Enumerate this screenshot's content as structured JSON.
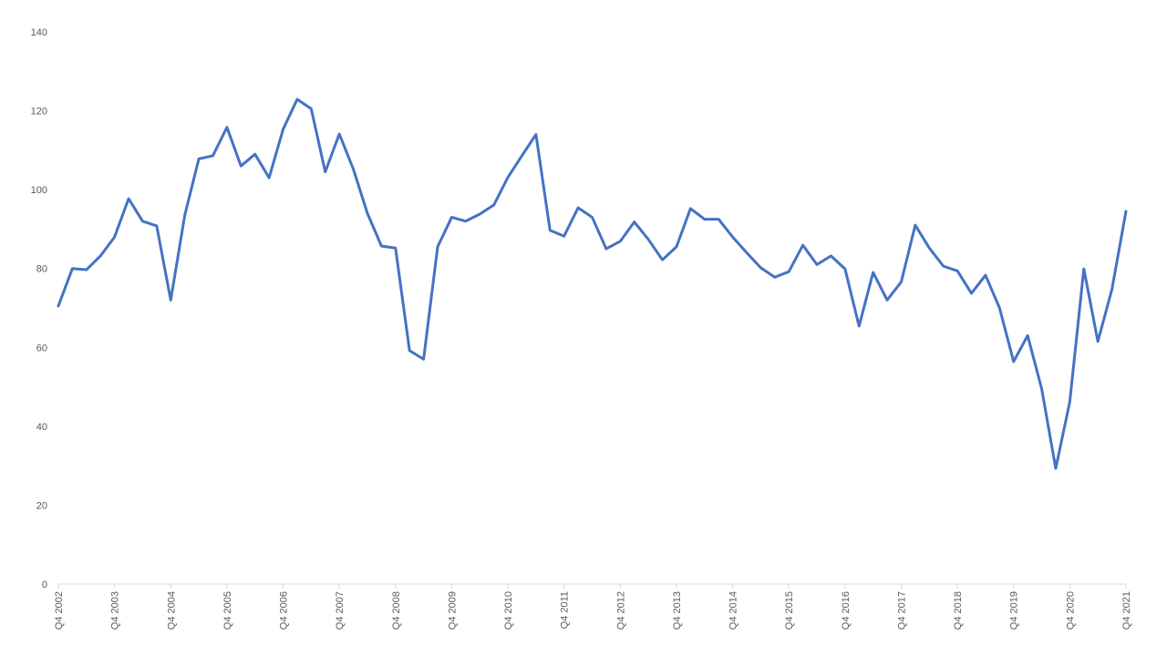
{
  "chart_data": {
    "type": "line",
    "title": "",
    "xlabel": "",
    "ylabel": "",
    "ylim": [
      0,
      140
    ],
    "yticks": [
      0,
      20,
      40,
      60,
      80,
      100,
      120,
      140
    ],
    "grid": false,
    "legend": "none",
    "line_color": "#4472C4",
    "axis_color": "#D9D9D9",
    "x_tick_labels": [
      "Q4 2002",
      "Q4 2003",
      "Q4 2004",
      "Q4 2005",
      "Q4 2006",
      "Q4 2007",
      "Q4 2008",
      "Q4 2009",
      "Q4 2010",
      "Q4 2011",
      "Q4 2012",
      "Q4 2013",
      "Q4 2014",
      "Q4 2015",
      "Q4 2016",
      "Q4 2017",
      "Q4 2018",
      "Q4 2019",
      "Q4 2020",
      "Q4 2021"
    ],
    "x": [
      "Q4 2002",
      "Q1 2003",
      "Q2 2003",
      "Q3 2003",
      "Q4 2003",
      "Q1 2004",
      "Q2 2004",
      "Q3 2004",
      "Q4 2004",
      "Q1 2005",
      "Q2 2005",
      "Q3 2005",
      "Q4 2005",
      "Q1 2006",
      "Q2 2006",
      "Q3 2006",
      "Q4 2006",
      "Q1 2007",
      "Q2 2007",
      "Q3 2007",
      "Q4 2007",
      "Q1 2008",
      "Q2 2008",
      "Q3 2008",
      "Q4 2008",
      "Q1 2009",
      "Q2 2009",
      "Q3 2009",
      "Q4 2009",
      "Q1 2010",
      "Q2 2010",
      "Q3 2010",
      "Q4 2010",
      "Q1 2011",
      "Q2 2011",
      "Q3 2011",
      "Q4 2011",
      "Q1 2012",
      "Q2 2012",
      "Q3 2012",
      "Q4 2012",
      "Q1 2013",
      "Q2 2013",
      "Q3 2013",
      "Q4 2013",
      "Q1 2014",
      "Q2 2014",
      "Q3 2014",
      "Q4 2014",
      "Q1 2015",
      "Q2 2015",
      "Q3 2015",
      "Q4 2015",
      "Q1 2016",
      "Q2 2016",
      "Q3 2016",
      "Q4 2016",
      "Q1 2017",
      "Q2 2017",
      "Q3 2017",
      "Q4 2017",
      "Q1 2018",
      "Q2 2018",
      "Q3 2018",
      "Q4 2018",
      "Q1 2019",
      "Q2 2019",
      "Q3 2019",
      "Q4 2019",
      "Q1 2020",
      "Q2 2020",
      "Q3 2020",
      "Q4 2020",
      "Q1 2021",
      "Q2 2021",
      "Q3 2021",
      "Q4 2021"
    ],
    "series": [
      {
        "values": [
          70.5,
          80,
          79.7,
          83.2,
          88,
          97.7,
          92,
          90.8,
          72,
          93.5,
          107.8,
          108.6,
          115.8,
          106,
          109,
          103,
          115.3,
          122.9,
          120.5,
          104.5,
          114.1,
          105.2,
          94,
          85.7,
          85.2,
          59.2,
          57,
          85.5,
          93,
          92,
          93.8,
          96.1,
          103.1,
          108.6,
          114,
          89.7,
          88.2,
          95.4,
          93,
          85,
          86.9,
          91.8,
          87.4,
          82.2,
          85.5,
          95.2,
          92.5,
          92.5,
          88,
          84,
          80.2,
          77.8,
          79.2,
          85.9,
          81,
          83.2,
          79.9,
          65.4,
          79,
          72,
          76.6,
          91,
          85.2,
          80.6,
          79.4,
          73.7,
          78.3,
          70,
          56.4,
          63,
          49.5,
          29.3,
          46.2,
          79.9,
          61.5,
          74.7,
          94.5
        ]
      }
    ]
  }
}
